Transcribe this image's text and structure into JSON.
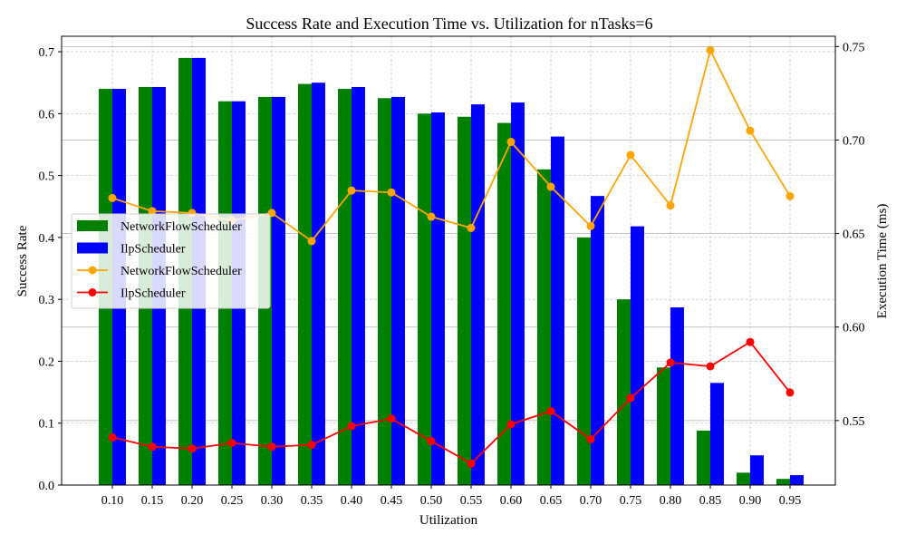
{
  "chart_data": {
    "type": "bar",
    "title": "Success Rate and Execution Time vs. Utilization for nTasks=6",
    "xlabel": "Utilization",
    "ylabel": "Success Rate",
    "y2label": "Execution Time (ms)",
    "categories": [
      "0.10",
      "0.15",
      "0.20",
      "0.25",
      "0.30",
      "0.35",
      "0.40",
      "0.45",
      "0.50",
      "0.55",
      "0.60",
      "0.65",
      "0.70",
      "0.75",
      "0.80",
      "0.85",
      "0.90",
      "0.95"
    ],
    "ylim": [
      0,
      0.725
    ],
    "y2lim": [
      0.5155,
      0.7555
    ],
    "yticks": [
      "0.0",
      "0.1",
      "0.2",
      "0.3",
      "0.4",
      "0.5",
      "0.6",
      "0.7"
    ],
    "y2ticks": [
      "0.55",
      "0.60",
      "0.65",
      "0.70",
      "0.75"
    ],
    "grid": true,
    "legend_position": "center-left",
    "bar_series": [
      {
        "name": "NetworkFlowScheduler",
        "color": "#008000",
        "values": [
          0.64,
          0.643,
          0.69,
          0.62,
          0.627,
          0.648,
          0.64,
          0.625,
          0.6,
          0.595,
          0.585,
          0.51,
          0.4,
          0.3,
          0.19,
          0.088,
          0.02,
          0.01
        ]
      },
      {
        "name": "IlpScheduler",
        "color": "#0000ff",
        "values": [
          0.64,
          0.643,
          0.69,
          0.62,
          0.627,
          0.65,
          0.643,
          0.627,
          0.602,
          0.615,
          0.618,
          0.563,
          0.467,
          0.418,
          0.287,
          0.165,
          0.048,
          0.016
        ]
      }
    ],
    "line_series": [
      {
        "name": "NetworkFlowScheduler",
        "color": "#ffa500",
        "values": [
          0.669,
          0.662,
          0.661,
          0.657,
          0.661,
          0.646,
          0.673,
          0.672,
          0.659,
          0.653,
          0.699,
          0.675,
          0.654,
          0.692,
          0.665,
          0.748,
          0.705,
          0.67
        ]
      },
      {
        "name": "IlpScheduler",
        "color": "#ff0000",
        "values": [
          0.541,
          0.536,
          0.535,
          0.538,
          0.536,
          0.537,
          0.547,
          0.551,
          0.539,
          0.527,
          0.548,
          0.555,
          0.54,
          0.562,
          0.581,
          0.579,
          0.592,
          0.565
        ]
      }
    ]
  }
}
